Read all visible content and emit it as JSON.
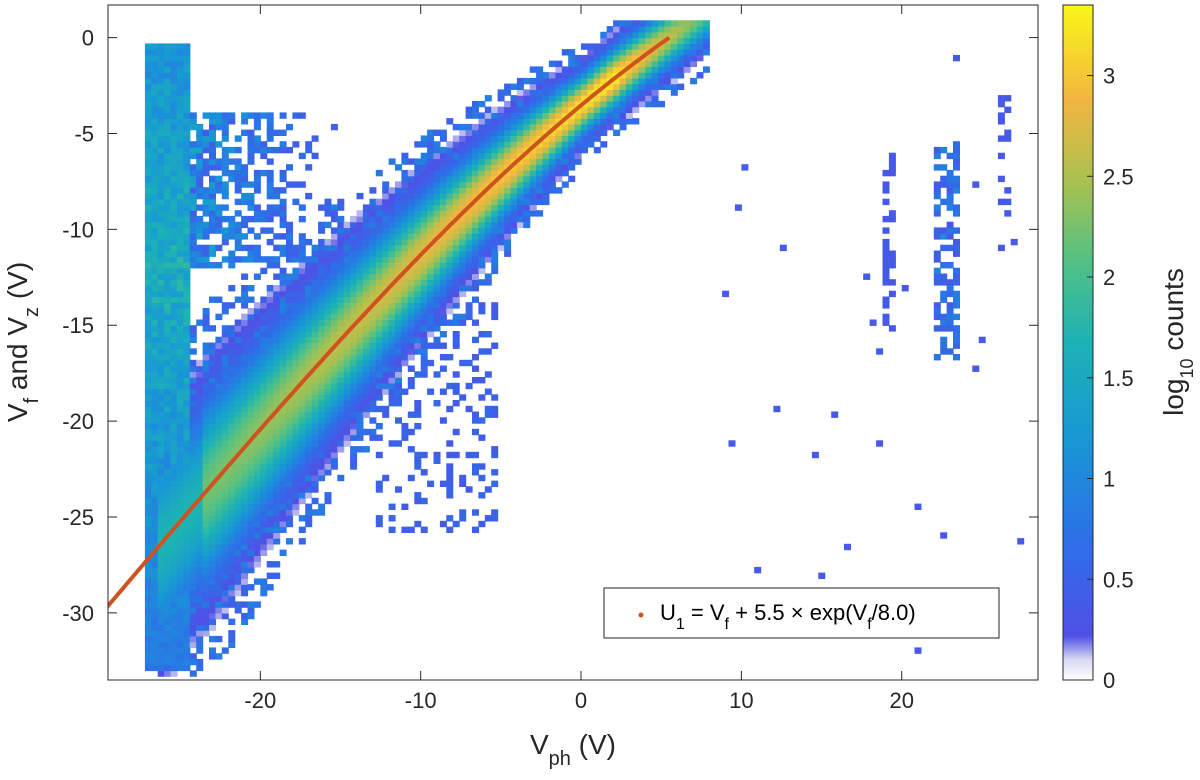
{
  "chart_data": {
    "type": "heatmap",
    "title": "",
    "xlabel": {
      "base": "V",
      "sub": "ph",
      "rest": " (V)"
    },
    "ylabel": {
      "p1": "V",
      "s1": "f",
      "p2": " and V",
      "s2": "z",
      "p3": " (V)"
    },
    "xlim": [
      -29.5,
      28.5
    ],
    "ylim": [
      -33.5,
      1.7
    ],
    "xticks": [
      -20,
      -10,
      0,
      10,
      20
    ],
    "xtick_labels": [
      "-20",
      "-10",
      "0",
      "10",
      "20"
    ],
    "yticks": [
      0,
      -5,
      -10,
      -15,
      -20,
      -25,
      -30
    ],
    "ytick_labels": [
      "0",
      "-5",
      "-10",
      "-15",
      "-20",
      "-25",
      "-30"
    ],
    "colorbar": {
      "label": {
        "p1": "log",
        "sub": "10",
        "p2": " counts"
      },
      "range": [
        0,
        3.35
      ],
      "ticks": [
        0,
        0.5,
        1,
        1.5,
        2,
        2.5,
        3
      ],
      "tick_labels": [
        "0",
        "0.5",
        "1",
        "1.5",
        "2",
        "2.5",
        "3"
      ],
      "colormap": "parula"
    },
    "density_features": [
      {
        "feature": "main-ridge",
        "x_range": [
          -26.5,
          7.5
        ],
        "peak_log10_counts": 3.3
      },
      {
        "feature": "left-column",
        "x": -26,
        "y_range": [
          -33,
          -0.5
        ],
        "log10_counts_range": [
          0.5,
          1.8
        ]
      },
      {
        "feature": "right-strip",
        "x": 22.5,
        "y_range": [
          -17,
          -5.5
        ],
        "log10_counts_range": [
          0.3,
          1.0
        ]
      }
    ],
    "fit_curve": {
      "color": "#cd5320",
      "x_range": [
        -29.5,
        5.5
      ],
      "y_range": [
        -30,
        0
      ]
    },
    "legend": {
      "placement": "bottom-right",
      "marker_color": "#cd5320",
      "parts": [
        {
          "t": "U",
          "style": "n"
        },
        {
          "t": "1",
          "style": "sub"
        },
        {
          "t": " = V",
          "style": "n"
        },
        {
          "t": "f",
          "style": "sub"
        },
        {
          "t": " + 5.5 × exp(V",
          "style": "n"
        },
        {
          "t": "f",
          "style": "sub"
        },
        {
          "t": "/8.0)",
          "style": "n"
        }
      ]
    },
    "grid": false
  }
}
